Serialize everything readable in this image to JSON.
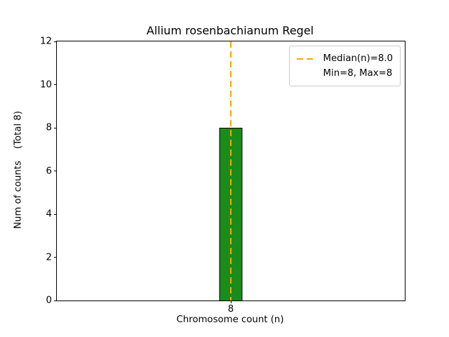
{
  "chart_data": {
    "type": "bar",
    "title": "Allium rosenbachianum Regel",
    "xlabel": "Chromosome count (n)",
    "ylabel": "Num of counts    (Total 8)",
    "categories": [
      "8"
    ],
    "values": [
      8
    ],
    "total": 8,
    "ylim": [
      0,
      12
    ],
    "yticks": [
      0,
      2,
      4,
      6,
      8,
      10,
      12
    ],
    "xticks": [
      "8"
    ],
    "grid": false,
    "legend_position": "upper-right",
    "legend": [
      "Median(n)=8.0",
      "Min=8, Max=8"
    ],
    "median": 8.0,
    "min": 8,
    "max": 8,
    "colors": {
      "bar_fill": "#1a8c1a",
      "bar_edge": "#000000",
      "median_line": "#ffa500",
      "background": "#ffffff",
      "text": "#000000"
    }
  }
}
